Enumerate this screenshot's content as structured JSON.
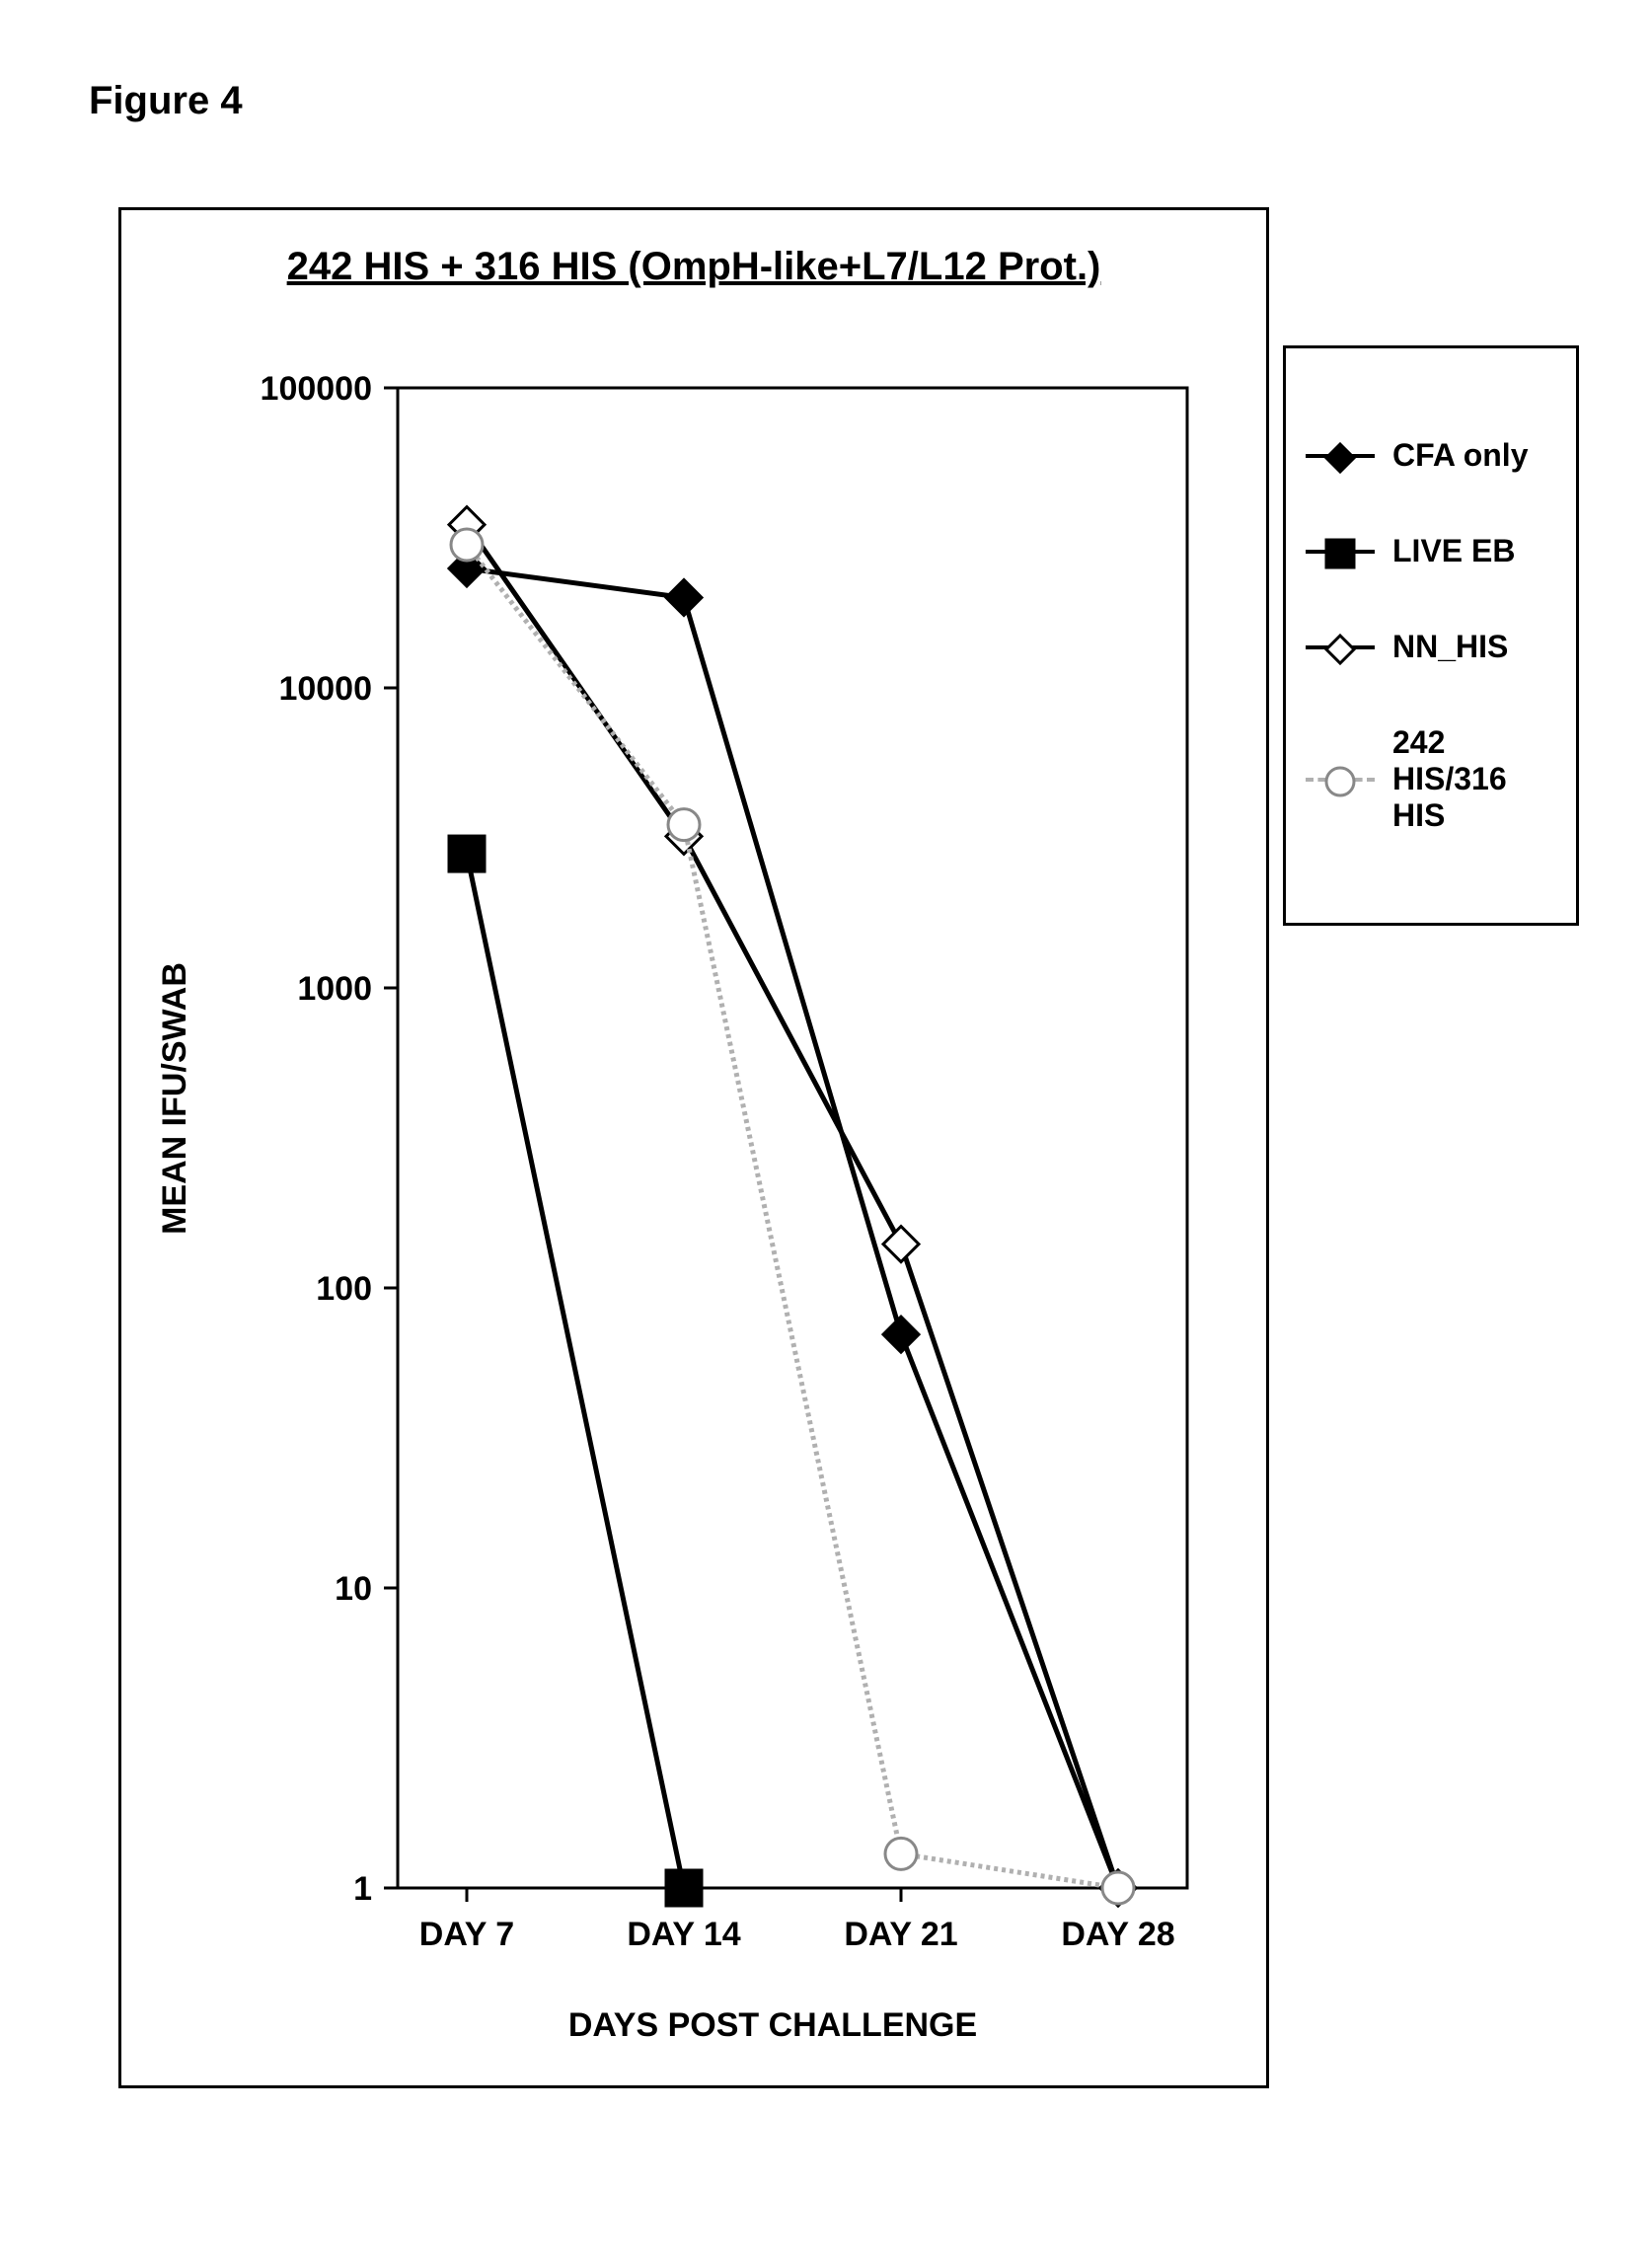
{
  "figure_label": "Figure 4",
  "chart": {
    "type": "line",
    "title": "242 HIS + 316 HIS (OmpH-like+L7/L12 Prot.)",
    "title_fontsize": 40,
    "title_underline": true,
    "background_color": "#ffffff",
    "plot_border_color": "#000000",
    "plot_border_width": 3,
    "x": {
      "label": "DAYS POST CHALLENGE",
      "label_fontsize": 34,
      "categories": [
        "DAY 7",
        "DAY 14",
        "DAY 21",
        "DAY 28"
      ],
      "tick_fontsize": 34
    },
    "y": {
      "label": "MEAN IFU/SWAB",
      "label_fontsize": 34,
      "scale": "log",
      "min": 1,
      "max": 100000,
      "ticks": [
        1,
        10,
        100,
        1000,
        10000,
        100000
      ],
      "tick_labels": [
        "1",
        "10",
        "100",
        "1000",
        "10000",
        "100000"
      ],
      "tick_fontsize": 34,
      "grid": false
    },
    "series": [
      {
        "name": "CFA only",
        "color": "#000000",
        "marker": "diamond-filled",
        "marker_fill": "#000000",
        "marker_stroke": "#000000",
        "marker_size": 18,
        "line_width": 5,
        "values": [
          25000,
          20000,
          70,
          1
        ]
      },
      {
        "name": "LIVE EB",
        "color": "#000000",
        "marker": "square-filled",
        "marker_fill": "#000000",
        "marker_stroke": "#000000",
        "marker_size": 18,
        "line_width": 5,
        "values": [
          2800,
          1,
          null,
          null
        ]
      },
      {
        "name": "NN_HIS",
        "color": "#000000",
        "marker": "diamond-open",
        "marker_fill": "#ffffff",
        "marker_stroke": "#000000",
        "marker_size": 18,
        "line_width": 5,
        "values": [
          35000,
          3200,
          140,
          1
        ]
      },
      {
        "name": "242 HIS/316 HIS",
        "color": "#b0b0b0",
        "marker": "circle-open",
        "marker_fill": "#ffffff",
        "marker_stroke": "#888888",
        "marker_size": 16,
        "line_width": 5,
        "line_dash": "4 4",
        "values": [
          30000,
          3500,
          1.3,
          1
        ]
      }
    ]
  },
  "legend": {
    "position": "right-outside",
    "border_color": "#000000",
    "border_width": 3,
    "background": "#ffffff",
    "item_fontsize": 32,
    "line_length": 70
  }
}
